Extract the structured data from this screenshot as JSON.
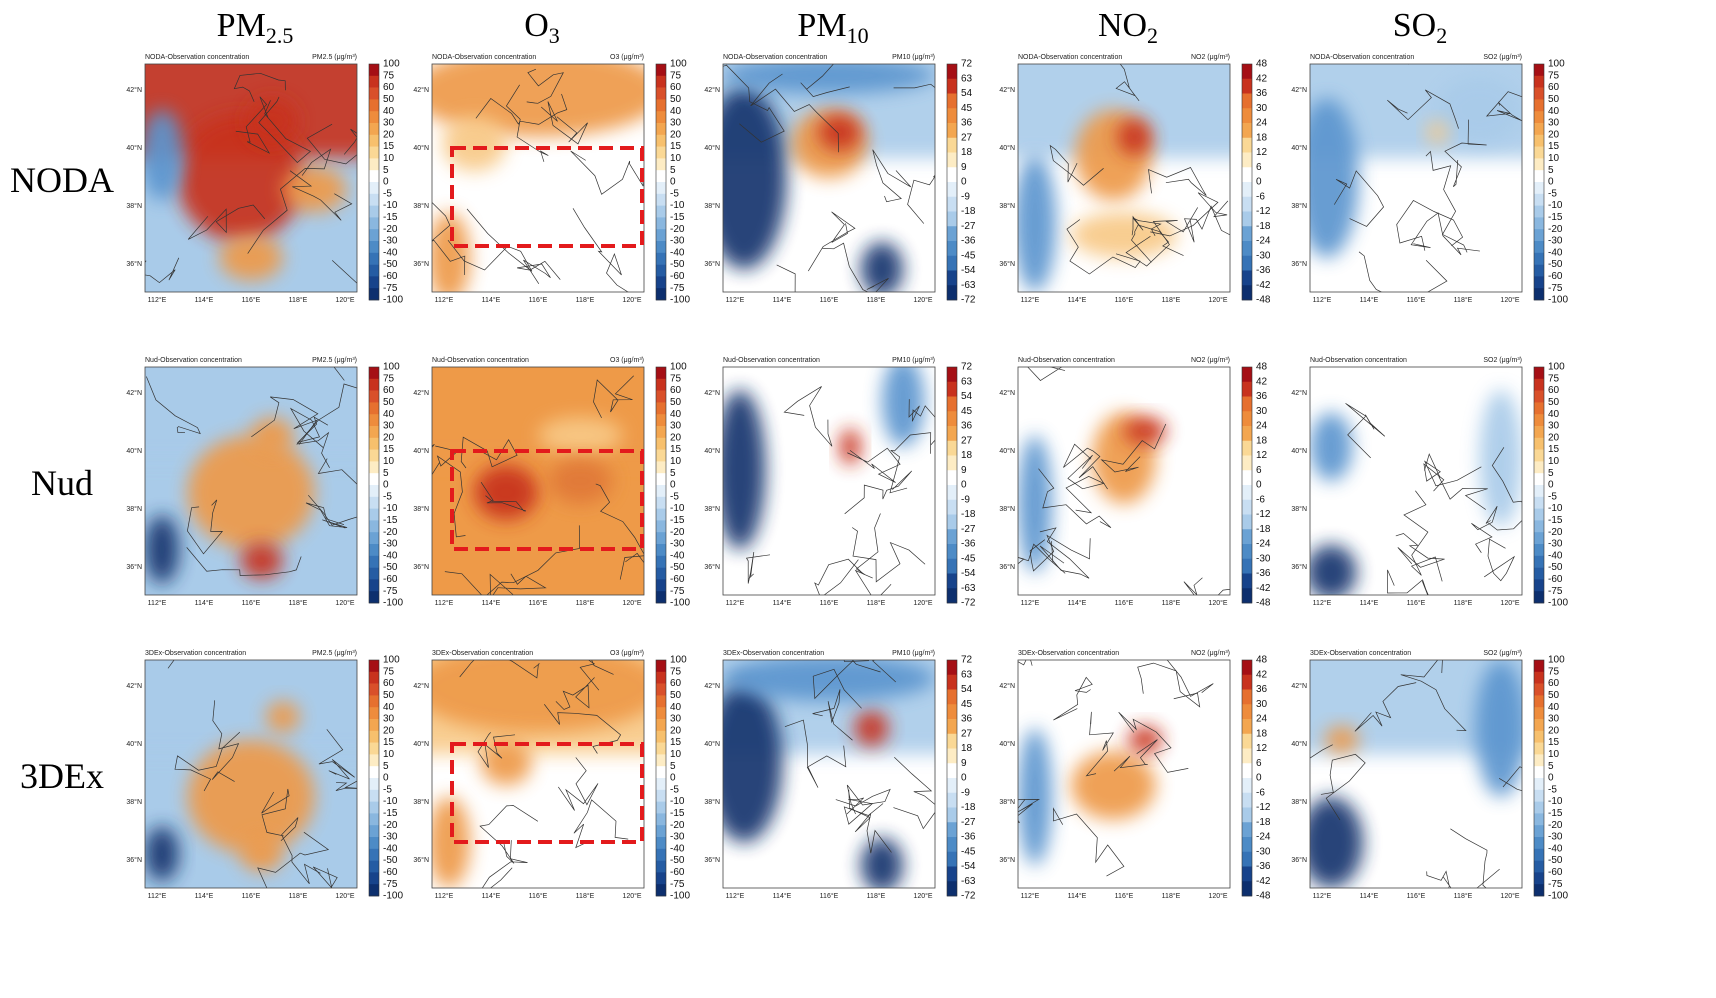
{
  "columns": [
    {
      "name": "PM",
      "sub": "2.5"
    },
    {
      "name": "O",
      "sub": "3"
    },
    {
      "name": "PM",
      "sub": "10"
    },
    {
      "name": "NO",
      "sub": "2"
    },
    {
      "name": "SO",
      "sub": "2"
    }
  ],
  "rows": [
    "NODA",
    "Nud",
    "3DEx"
  ],
  "panel_titles": [
    "NODA-Observation concentration",
    "Nud-Observation concentration",
    "3DEx-Observation concentration"
  ],
  "units": [
    "PM2.5 (μg/m³)",
    "O3 (μg/m³)",
    "PM10 (μg/m³)",
    "NO2 (μg/m³)",
    "SO2 (μg/m³)"
  ],
  "colorbar_ticks": [
    [
      100,
      75,
      60,
      50,
      40,
      30,
      20,
      15,
      10,
      5,
      0,
      -5,
      -10,
      -15,
      -20,
      -30,
      -40,
      -50,
      -60,
      -75,
      -100
    ],
    [
      100,
      75,
      60,
      50,
      40,
      30,
      20,
      15,
      10,
      5,
      0,
      -5,
      -10,
      -15,
      -20,
      -30,
      -40,
      -50,
      -60,
      -75,
      -100
    ],
    [
      72,
      63,
      54,
      45,
      36,
      27,
      18,
      9,
      0,
      -9,
      -18,
      -27,
      -36,
      -45,
      -54,
      -63,
      -72
    ],
    [
      48,
      42,
      36,
      30,
      24,
      18,
      12,
      6,
      0,
      -6,
      -12,
      -18,
      -24,
      -30,
      -36,
      -42,
      -48
    ],
    [
      100,
      75,
      60,
      50,
      40,
      30,
      20,
      15,
      10,
      5,
      0,
      -5,
      -10,
      -15,
      -20,
      -30,
      -40,
      -50,
      -60,
      -75,
      -100
    ]
  ],
  "lat_labels": [
    "42°N",
    "40°N",
    "38°N",
    "36°N"
  ],
  "lon_labels": [
    "112°E",
    "114°E",
    "116°E",
    "118°E",
    "120°E"
  ]
}
